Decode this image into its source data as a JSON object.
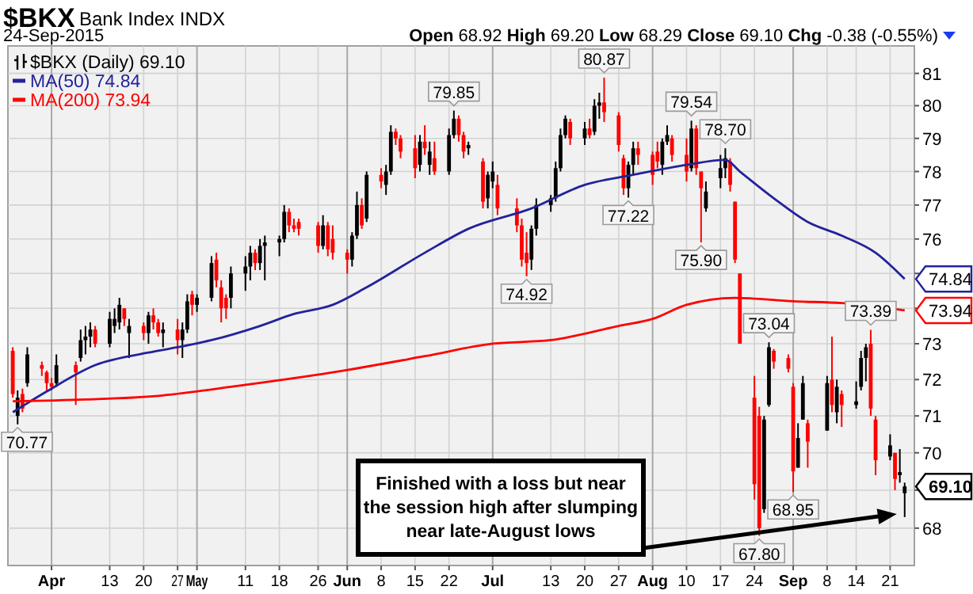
{
  "chart_data": {
    "type": "candlestick",
    "title": "$BKX",
    "subtitle": "Bank Index INDX",
    "x": [
      "2015-03-24",
      "2015-03-25",
      "2015-03-26",
      "2015-03-27",
      "2015-03-30",
      "2015-03-31",
      "2015-04-01",
      "2015-04-02",
      "2015-04-06",
      "2015-04-07",
      "2015-04-08",
      "2015-04-09",
      "2015-04-10",
      "2015-04-13",
      "2015-04-14",
      "2015-04-15",
      "2015-04-16",
      "2015-04-17",
      "2015-04-20",
      "2015-04-21",
      "2015-04-22",
      "2015-04-23",
      "2015-04-24",
      "2015-04-27",
      "2015-04-28",
      "2015-04-29",
      "2015-04-30",
      "2015-05-01",
      "2015-05-04",
      "2015-05-05",
      "2015-05-06",
      "2015-05-07",
      "2015-05-08",
      "2015-05-11",
      "2015-05-12",
      "2015-05-13",
      "2015-05-14",
      "2015-05-15",
      "2015-05-18",
      "2015-05-19",
      "2015-05-20",
      "2015-05-21",
      "2015-05-22",
      "2015-05-26",
      "2015-05-27",
      "2015-05-28",
      "2015-05-29",
      "2015-06-01",
      "2015-06-02",
      "2015-06-03",
      "2015-06-04",
      "2015-06-05",
      "2015-06-08",
      "2015-06-09",
      "2015-06-10",
      "2015-06-11",
      "2015-06-12",
      "2015-06-15",
      "2015-06-16",
      "2015-06-17",
      "2015-06-18",
      "2015-06-19",
      "2015-06-22",
      "2015-06-23",
      "2015-06-24",
      "2015-06-25",
      "2015-06-26",
      "2015-06-29",
      "2015-06-30",
      "2015-07-01",
      "2015-07-02",
      "2015-07-06",
      "2015-07-07",
      "2015-07-08",
      "2015-07-09",
      "2015-07-10",
      "2015-07-13",
      "2015-07-14",
      "2015-07-15",
      "2015-07-16",
      "2015-07-17",
      "2015-07-20",
      "2015-07-21",
      "2015-07-22",
      "2015-07-23",
      "2015-07-24",
      "2015-07-27",
      "2015-07-28",
      "2015-07-29",
      "2015-07-30",
      "2015-07-31",
      "2015-08-03",
      "2015-08-04",
      "2015-08-05",
      "2015-08-06",
      "2015-08-07",
      "2015-08-10",
      "2015-08-11",
      "2015-08-12",
      "2015-08-13",
      "2015-08-14",
      "2015-08-17",
      "2015-08-18",
      "2015-08-19",
      "2015-08-20",
      "2015-08-21",
      "2015-08-24",
      "2015-08-25",
      "2015-08-26",
      "2015-08-27",
      "2015-08-28",
      "2015-08-31",
      "2015-09-01",
      "2015-09-02",
      "2015-09-03",
      "2015-09-04",
      "2015-09-08",
      "2015-09-09",
      "2015-09-10",
      "2015-09-11",
      "2015-09-14",
      "2015-09-15",
      "2015-09-16",
      "2015-09-17",
      "2015-09-18",
      "2015-09-21",
      "2015-09-22",
      "2015-09-23",
      "2015-09-24"
    ],
    "xlim": [
      "2015-03-23",
      "2015-09-26"
    ],
    "xticks": [
      {
        "value": "2015-04-01",
        "label": "Apr"
      },
      {
        "value": "2015-04-13",
        "label": "13"
      },
      {
        "value": "2015-04-20",
        "label": "20"
      },
      {
        "value": "2015-04-27",
        "label": "27"
      },
      {
        "value": "2015-05-01",
        "label": "May"
      },
      {
        "value": "2015-05-11",
        "label": "11"
      },
      {
        "value": "2015-05-18",
        "label": "18"
      },
      {
        "value": "2015-05-26",
        "label": "26"
      },
      {
        "value": "2015-06-01",
        "label": "Jun"
      },
      {
        "value": "2015-06-08",
        "label": "8"
      },
      {
        "value": "2015-06-15",
        "label": "15"
      },
      {
        "value": "2015-06-22",
        "label": "22"
      },
      {
        "value": "2015-07-01",
        "label": "Jul"
      },
      {
        "value": "2015-07-13",
        "label": "13"
      },
      {
        "value": "2015-07-20",
        "label": "20"
      },
      {
        "value": "2015-07-27",
        "label": "27"
      },
      {
        "value": "2015-08-03",
        "label": "Aug"
      },
      {
        "value": "2015-08-10",
        "label": "10"
      },
      {
        "value": "2015-08-17",
        "label": "17"
      },
      {
        "value": "2015-08-24",
        "label": "24"
      },
      {
        "value": "2015-09-01",
        "label": "Sep"
      },
      {
        "value": "2015-09-08",
        "label": "8"
      },
      {
        "value": "2015-09-14",
        "label": "14"
      },
      {
        "value": "2015-09-21",
        "label": "21"
      }
    ],
    "ylim": [
      67.03,
      81.86
    ],
    "yticks": [
      68,
      {
        "value": 69,
        "label": null
      },
      70,
      71,
      72,
      73,
      {
        "value": 74,
        "label": null
      },
      {
        "value": 75,
        "label": null
      },
      76,
      77,
      78,
      79,
      80,
      81
    ],
    "log": "y",
    "grid": true,
    "legend": "top left",
    "series": [
      {
        "name": "$BKX (Daily) 69.10",
        "color": "#000000",
        "colors": [
          "#ff0000",
          "#000000",
          "#ff0000",
          "#000000",
          "#ff0000",
          "#ff0000",
          "#ff0000",
          "#000000",
          "#ff0000",
          "#000000",
          "#000000",
          "#000000",
          "#ff0000",
          "#000000",
          "#000000",
          "#000000",
          "#ff0000",
          "#000000",
          "#ff0000",
          "#000000",
          "#ff0000",
          "#ff0000",
          "#000000",
          "#ff0000",
          "#000000",
          "#000000",
          "#ff0000",
          "#000000",
          "#000000",
          "#ff0000",
          "#ff0000",
          "#ff0000",
          "#000000",
          "#000000",
          "#000000",
          "#ff0000",
          "#000000",
          "#000000",
          "#000000",
          "#000000",
          "#ff0000",
          "#ff0000",
          "#ff0000",
          "#ff0000",
          "#000000",
          "#ff0000",
          "#ff0000",
          "#ff0000",
          "#000000",
          "#000000",
          "#ff0000",
          "#000000",
          "#ff0000",
          "#000000",
          "#000000",
          "#ff0000",
          "#ff0000",
          "#ff0000",
          "#000000",
          "#ff0000",
          "#000000",
          "#ff0000",
          "#000000",
          "#000000",
          "#ff0000",
          "#ff0000",
          "#000000",
          "#ff0000",
          "#000000",
          "#000000",
          "#ff0000",
          "#ff0000",
          "#ff0000",
          "#ff0000",
          "#000000",
          "#000000",
          "#000000",
          "#000000",
          "#000000",
          "#000000",
          "#ff0000",
          "#000000",
          "#ff0000",
          "#000000",
          "#000000",
          "#ff0000",
          "#ff0000",
          "#ff0000",
          "#000000",
          "#000000",
          "#ff0000",
          "#ff0000",
          "#ff0000",
          "#000000",
          "#000000",
          "#ff0000",
          "#ff0000",
          "#000000",
          "#ff0000",
          "#ff0000",
          "#000000",
          "#000000",
          "#000000",
          "#ff0000",
          "#ff0000",
          "#ff0000",
          "#ff0000",
          "#ff0000",
          "#000000",
          "#000000",
          "#ff0000",
          "#ff0000",
          "#ff0000",
          "#000000",
          "#000000",
          "#ff0000",
          "#000000",
          "#ff0000",
          "#000000",
          "#ff0000",
          "#000000",
          "#000000",
          "#000000",
          "#ff0000",
          "#ff0000",
          "#000000",
          "#ff0000",
          "#000000",
          "#000000"
        ],
        "ohlc": [
          [
            72.8,
            72.9,
            71.5,
            71.6
          ],
          [
            71.0,
            71.7,
            70.77,
            71.5
          ],
          [
            71.6,
            71.75,
            71.1,
            71.2
          ],
          [
            71.9,
            72.9,
            71.8,
            72.7
          ],
          [
            72.4,
            72.5,
            72.1,
            72.3
          ],
          [
            72.2,
            72.25,
            71.7,
            71.9
          ],
          [
            71.9,
            72.05,
            71.7,
            71.8
          ],
          [
            71.9,
            72.7,
            71.8,
            72.4
          ],
          [
            72.4,
            72.5,
            71.3,
            72.2
          ],
          [
            72.6,
            73.4,
            72.5,
            73.1
          ],
          [
            73.1,
            73.5,
            72.7,
            73.2
          ],
          [
            73.2,
            73.6,
            72.9,
            73.4
          ],
          [
            73.4,
            73.5,
            72.9,
            73.0
          ],
          [
            73.0,
            73.9,
            72.9,
            73.7
          ],
          [
            73.5,
            74.0,
            73.3,
            73.7
          ],
          [
            73.6,
            74.3,
            73.4,
            74.1
          ],
          [
            74.0,
            74.0,
            73.5,
            73.7
          ],
          [
            73.3,
            73.7,
            72.6,
            73.5
          ],
          [
            73.5,
            73.6,
            73.1,
            73.3
          ],
          [
            73.3,
            73.9,
            73.0,
            73.8
          ],
          [
            73.8,
            74.0,
            73.4,
            73.6
          ],
          [
            73.6,
            73.7,
            73.2,
            73.3
          ],
          [
            73.3,
            73.6,
            72.9,
            73.4
          ],
          [
            73.4,
            73.7,
            72.7,
            73.1
          ],
          [
            73.1,
            73.6,
            72.6,
            73.4
          ],
          [
            73.4,
            74.4,
            73.3,
            74.2
          ],
          [
            74.4,
            74.5,
            73.8,
            74.1
          ],
          [
            74.1,
            74.4,
            73.9,
            74.3
          ],
          [
            74.3,
            75.5,
            74.2,
            75.3
          ],
          [
            75.4,
            75.6,
            74.6,
            74.8
          ],
          [
            74.6,
            74.8,
            73.6,
            74.0
          ],
          [
            74.3,
            74.4,
            73.7,
            74.0
          ],
          [
            74.3,
            75.2,
            74.0,
            75.0
          ],
          [
            75.0,
            75.5,
            74.5,
            75.2
          ],
          [
            75.2,
            75.8,
            74.8,
            75.6
          ],
          [
            75.6,
            75.7,
            75.1,
            75.3
          ],
          [
            75.3,
            76.0,
            75.1,
            75.8
          ],
          [
            75.8,
            76.1,
            74.8,
            75.9
          ],
          [
            75.9,
            76.1,
            75.5,
            76.0
          ],
          [
            76.0,
            77.0,
            75.9,
            76.8
          ],
          [
            76.8,
            76.9,
            76.2,
            76.4
          ],
          [
            76.4,
            76.6,
            76.2,
            76.3
          ],
          [
            76.5,
            76.6,
            76.1,
            76.3
          ],
          [
            76.4,
            76.5,
            75.6,
            75.8
          ],
          [
            75.8,
            76.7,
            75.7,
            76.4
          ],
          [
            76.4,
            76.5,
            75.5,
            75.7
          ],
          [
            76.0,
            76.4,
            75.4,
            75.6
          ],
          [
            75.6,
            75.7,
            75.0,
            75.4
          ],
          [
            75.4,
            76.2,
            75.2,
            76.1
          ],
          [
            76.1,
            77.4,
            76.0,
            77.0
          ],
          [
            77.0,
            77.2,
            76.3,
            76.4
          ],
          [
            76.6,
            78.0,
            76.5,
            77.9
          ],
          [
            77.9,
            78.1,
            77.5,
            77.7
          ],
          [
            77.6,
            78.2,
            77.3,
            78.0
          ],
          [
            78.0,
            79.4,
            77.9,
            79.2
          ],
          [
            79.2,
            79.3,
            78.8,
            79.0
          ],
          [
            79.0,
            79.1,
            78.4,
            78.6
          ],
          [
            78.7,
            79.1,
            77.8,
            78.1
          ],
          [
            78.2,
            79.1,
            78.0,
            78.9
          ],
          [
            78.9,
            79.4,
            78.5,
            78.7
          ],
          [
            78.2,
            78.9,
            77.9,
            78.6
          ],
          [
            78.4,
            78.9,
            77.9,
            78.0
          ],
          [
            78.0,
            79.3,
            77.9,
            79.1
          ],
          [
            79.1,
            79.85,
            79.0,
            79.6
          ],
          [
            79.6,
            79.7,
            78.9,
            79.1
          ],
          [
            79.1,
            79.2,
            78.4,
            78.6
          ],
          [
            78.7,
            78.9,
            78.5,
            78.8
          ],
          [
            78.3,
            78.4,
            76.9,
            77.1
          ],
          [
            77.2,
            78.0,
            76.9,
            77.9
          ],
          [
            77.7,
            78.3,
            77.5,
            78.0
          ],
          [
            77.6,
            77.9,
            76.7,
            76.9
          ],
          [
            76.9,
            77.2,
            76.2,
            76.4
          ],
          [
            76.4,
            76.6,
            75.2,
            75.4
          ],
          [
            75.6,
            76.2,
            74.92,
            75.3
          ],
          [
            75.4,
            76.4,
            75.1,
            76.3
          ],
          [
            76.3,
            77.2,
            76.1,
            77.0
          ],
          [
            77.0,
            77.3,
            76.8,
            77.2
          ],
          [
            77.2,
            78.3,
            77.1,
            78.1
          ],
          [
            78.1,
            79.3,
            78.0,
            79.1
          ],
          [
            79.1,
            79.7,
            79.0,
            79.6
          ],
          [
            79.5,
            79.6,
            78.8,
            79.0
          ],
          [
            79.0,
            79.5,
            78.8,
            79.3
          ],
          [
            79.3,
            79.6,
            79.0,
            79.1
          ],
          [
            79.2,
            80.2,
            79.1,
            80.0
          ],
          [
            80.0,
            80.4,
            79.6,
            80.1
          ],
          [
            80.1,
            80.87,
            79.5,
            79.8
          ],
          [
            79.7,
            79.8,
            78.6,
            78.8
          ],
          [
            78.4,
            78.5,
            77.3,
            77.5
          ],
          [
            77.5,
            78.3,
            77.22,
            78.2
          ],
          [
            78.2,
            78.9,
            77.9,
            78.7
          ],
          [
            78.7,
            78.9,
            78.2,
            78.5
          ],
          [
            78.5,
            78.6,
            77.6,
            77.9
          ],
          [
            78.6,
            78.9,
            78.1,
            78.3
          ],
          [
            78.2,
            79.0,
            77.9,
            78.9
          ],
          [
            78.9,
            79.4,
            78.8,
            79.1
          ],
          [
            79.0,
            79.1,
            78.3,
            78.5
          ],
          [
            78.5,
            79.0,
            77.7,
            78.0
          ],
          [
            78.1,
            79.54,
            78.0,
            79.3
          ],
          [
            79.3,
            79.4,
            77.9,
            78.1
          ],
          [
            78.0,
            78.0,
            75.9,
            77.5
          ],
          [
            76.9,
            77.7,
            76.8,
            77.4
          ],
          [
            77.8,
            78.5,
            77.5,
            78.1
          ],
          [
            78.1,
            78.7,
            77.8,
            78.4
          ],
          [
            78.3,
            78.4,
            77.4,
            77.6
          ],
          [
            77.1,
            77.1,
            75.3,
            75.4
          ],
          [
            75.0,
            75.0,
            73.0,
            73.0
          ],
          [
            71.5,
            72.1,
            68.75,
            69.16
          ],
          [
            71.0,
            71.25,
            67.8,
            68.0
          ],
          [
            68.5,
            71.0,
            68.4,
            70.9
          ],
          [
            71.3,
            73.04,
            71.25,
            72.9
          ],
          [
            72.8,
            72.85,
            72.3,
            72.5
          ],
          [
            72.6,
            72.7,
            72.2,
            72.3
          ],
          [
            71.8,
            71.9,
            68.95,
            69.5
          ],
          [
            69.6,
            70.8,
            69.6,
            70.4
          ],
          [
            70.9,
            72.1,
            70.9,
            71.9
          ],
          [
            70.8,
            70.9,
            69.6,
            70.3
          ],
          [
            70.6,
            72.1,
            70.6,
            71.9
          ],
          [
            72.0,
            73.2,
            71.1,
            71.3
          ],
          [
            71.1,
            72.0,
            70.8,
            71.8
          ],
          [
            71.6,
            71.7,
            70.7,
            71.3
          ],
          [
            71.3,
            71.95,
            71.2,
            71.4
          ],
          [
            71.8,
            72.8,
            71.7,
            72.6
          ],
          [
            72.6,
            73.0,
            71.95,
            72.9
          ],
          [
            73.0,
            73.39,
            71.0,
            71.2
          ],
          [
            70.9,
            71.0,
            69.4,
            69.8
          ],
          [
            69.9,
            70.5,
            69.8,
            70.2
          ],
          [
            70.0,
            70.0,
            69.0,
            69.3
          ],
          [
            69.4,
            70.1,
            69.2,
            69.48
          ],
          [
            68.92,
            69.2,
            68.29,
            69.1
          ]
        ]
      },
      {
        "type": "line",
        "name": "MA(50) 74.84",
        "color": "#23239b",
        "x": [
          "2015-03-24",
          "2015-03-31",
          "2015-04-10",
          "2015-04-21",
          "2015-04-27",
          "2015-05-04",
          "2015-05-14",
          "2015-05-21",
          "2015-05-29",
          "2015-06-05",
          "2015-06-17",
          "2015-06-26",
          "2015-07-09",
          "2015-07-20",
          "2015-07-30",
          "2015-08-10",
          "2015-08-18",
          "2015-08-21",
          "2015-08-28",
          "2015-09-04",
          "2015-09-11",
          "2015-09-18",
          "2015-09-24"
        ],
        "values": [
          71.1,
          71.67,
          72.4,
          72.75,
          72.9,
          73.1,
          73.5,
          73.84,
          74.1,
          74.6,
          75.6,
          76.3,
          76.9,
          77.6,
          77.9,
          78.2,
          78.35,
          78.0,
          77.2,
          76.5,
          76.1,
          75.6,
          74.84
        ]
      },
      {
        "type": "line",
        "name": "MA(200) 73.94",
        "color": "#ff0000",
        "x": [
          "2015-03-24",
          "2015-04-08",
          "2015-04-23",
          "2015-05-08",
          "2015-05-29",
          "2015-06-17",
          "2015-07-01",
          "2015-07-13",
          "2015-07-27",
          "2015-08-03",
          "2015-08-10",
          "2015-08-20",
          "2015-09-01",
          "2015-09-11",
          "2015-09-24"
        ],
        "values": [
          71.4,
          71.45,
          71.55,
          71.8,
          72.2,
          72.65,
          73.0,
          73.1,
          73.5,
          73.7,
          74.1,
          74.3,
          74.2,
          74.15,
          73.94
        ]
      }
    ],
    "annotations": [
      "24-Sep-2015",
      "Open 68.92 High 69.20 Low 68.29 Close 69.10 Chg -0.38 (-0.55%)",
      "Finished with a loss but near the session high after slumping near late-August lows",
      {
        "text": "70.77",
        "x": "2015-03-25",
        "y": 70.77
      },
      {
        "text": "79.85",
        "x": "2015-06-23",
        "y": 79.85
      },
      {
        "text": "74.92",
        "x": "2015-07-08",
        "y": 74.92
      },
      {
        "text": "80.87",
        "x": "2015-07-24",
        "y": 80.87
      },
      {
        "text": "77.22",
        "x": "2015-07-29",
        "y": 77.22
      },
      {
        "text": "79.54",
        "x": "2015-08-11",
        "y": 79.54
      },
      {
        "text": "75.90",
        "x": "2015-08-13",
        "y": 75.9
      },
      {
        "text": "78.70",
        "x": "2015-08-18",
        "y": 78.7
      },
      {
        "text": "67.80",
        "x": "2015-08-25",
        "y": 67.8
      },
      {
        "text": "73.04",
        "x": "2015-08-27",
        "y": 73.04
      },
      {
        "text": "68.95",
        "x": "2015-09-01",
        "y": 68.95
      },
      {
        "text": "73.39",
        "x": "2015-09-17",
        "y": 73.39
      },
      {
        "text": "74.84",
        "x": "2015-09-24",
        "y": 74.84
      },
      {
        "text": "73.94",
        "x": "2015-09-24",
        "y": 73.94
      },
      {
        "text": "69.10",
        "x": "2015-09-24",
        "y": 69.1
      }
    ]
  }
}
